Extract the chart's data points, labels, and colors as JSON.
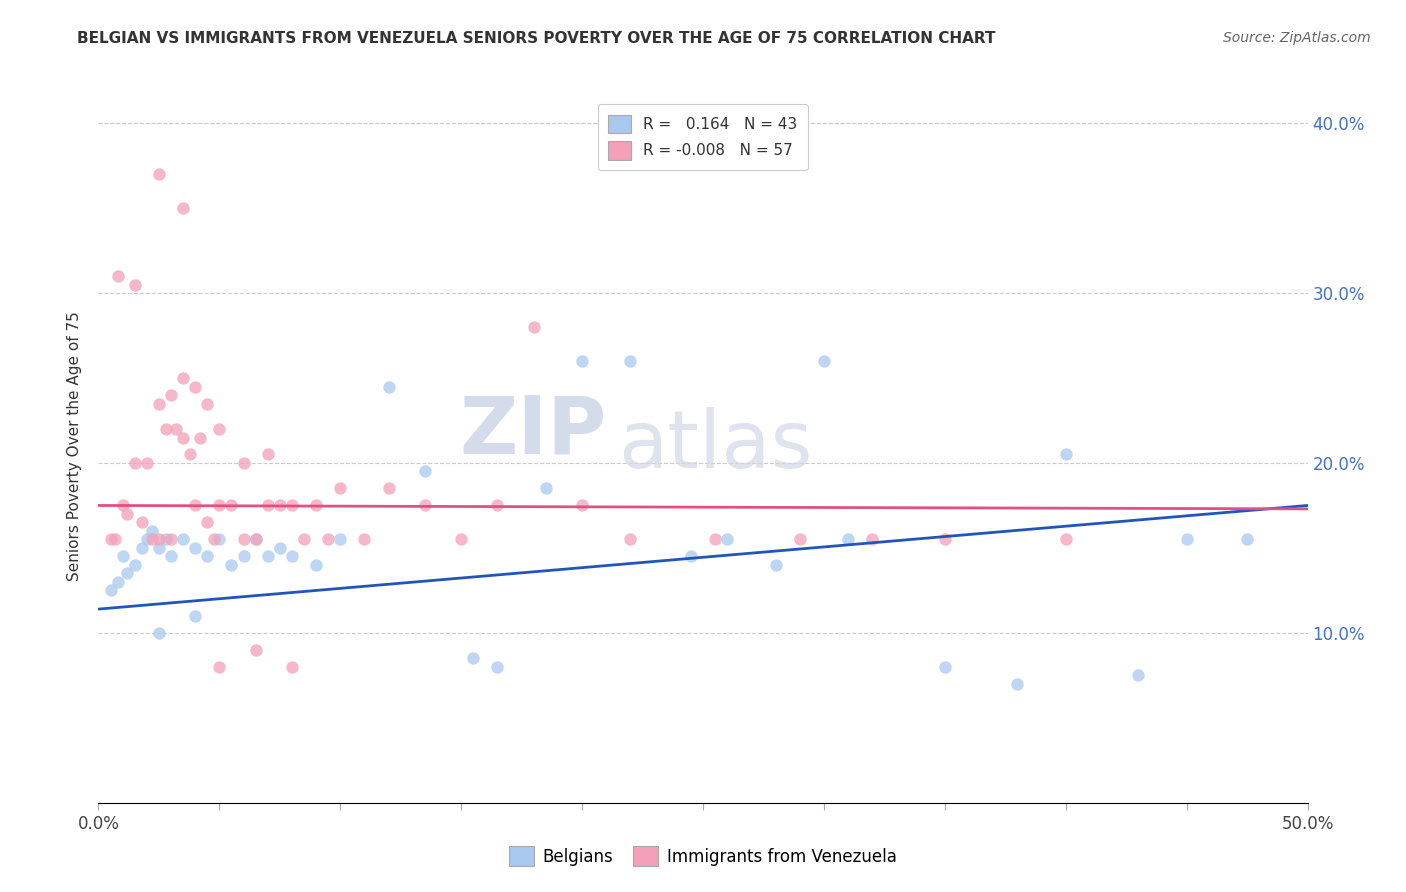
{
  "title": "BELGIAN VS IMMIGRANTS FROM VENEZUELA SENIORS POVERTY OVER THE AGE OF 75 CORRELATION CHART",
  "source": "Source: ZipAtlas.com",
  "ylabel": "Seniors Poverty Over the Age of 75",
  "xlim": [
    0,
    0.5
  ],
  "ylim": [
    0,
    0.42
  ],
  "r_belgian": 0.164,
  "n_belgian": 43,
  "r_venezuela": -0.008,
  "n_venezuela": 57,
  "legend_label_1": "Belgians",
  "legend_label_2": "Immigrants from Venezuela",
  "color_belgian": "#a8c8f0",
  "color_venezuela": "#f4a0b8",
  "color_trendline_belgian": "#2255bb",
  "color_trendline_venezuela": "#e05080",
  "watermark_zip": "ZIP",
  "watermark_atlas": "atlas",
  "belgian_x": [
    0.005,
    0.008,
    0.01,
    0.012,
    0.015,
    0.018,
    0.02,
    0.022,
    0.025,
    0.028,
    0.03,
    0.035,
    0.04,
    0.045,
    0.05,
    0.055,
    0.06,
    0.065,
    0.07,
    0.075,
    0.08,
    0.09,
    0.1,
    0.12,
    0.135,
    0.155,
    0.165,
    0.185,
    0.2,
    0.22,
    0.245,
    0.26,
    0.28,
    0.31,
    0.35,
    0.38,
    0.4,
    0.43,
    0.45,
    0.475,
    0.025,
    0.04,
    0.3
  ],
  "belgian_y": [
    0.125,
    0.13,
    0.145,
    0.135,
    0.14,
    0.15,
    0.155,
    0.16,
    0.15,
    0.155,
    0.145,
    0.155,
    0.15,
    0.145,
    0.155,
    0.14,
    0.145,
    0.155,
    0.145,
    0.15,
    0.145,
    0.14,
    0.155,
    0.245,
    0.195,
    0.085,
    0.08,
    0.185,
    0.26,
    0.26,
    0.145,
    0.155,
    0.14,
    0.155,
    0.08,
    0.07,
    0.205,
    0.075,
    0.155,
    0.155,
    0.1,
    0.11,
    0.26
  ],
  "venezuela_x": [
    0.005,
    0.007,
    0.01,
    0.012,
    0.015,
    0.018,
    0.02,
    0.022,
    0.025,
    0.025,
    0.028,
    0.03,
    0.03,
    0.032,
    0.035,
    0.035,
    0.038,
    0.04,
    0.04,
    0.042,
    0.045,
    0.045,
    0.048,
    0.05,
    0.05,
    0.055,
    0.06,
    0.06,
    0.065,
    0.07,
    0.07,
    0.075,
    0.08,
    0.085,
    0.09,
    0.095,
    0.1,
    0.11,
    0.12,
    0.135,
    0.15,
    0.165,
    0.18,
    0.2,
    0.22,
    0.255,
    0.29,
    0.32,
    0.35,
    0.4,
    0.008,
    0.015,
    0.025,
    0.035,
    0.05,
    0.065,
    0.08
  ],
  "venezuela_y": [
    0.155,
    0.155,
    0.175,
    0.17,
    0.2,
    0.165,
    0.2,
    0.155,
    0.235,
    0.155,
    0.22,
    0.24,
    0.155,
    0.22,
    0.25,
    0.215,
    0.205,
    0.175,
    0.245,
    0.215,
    0.165,
    0.235,
    0.155,
    0.175,
    0.22,
    0.175,
    0.155,
    0.2,
    0.155,
    0.175,
    0.205,
    0.175,
    0.175,
    0.155,
    0.175,
    0.155,
    0.185,
    0.155,
    0.185,
    0.175,
    0.155,
    0.175,
    0.28,
    0.175,
    0.155,
    0.155,
    0.155,
    0.155,
    0.155,
    0.155,
    0.31,
    0.305,
    0.37,
    0.35,
    0.08,
    0.09,
    0.08
  ]
}
